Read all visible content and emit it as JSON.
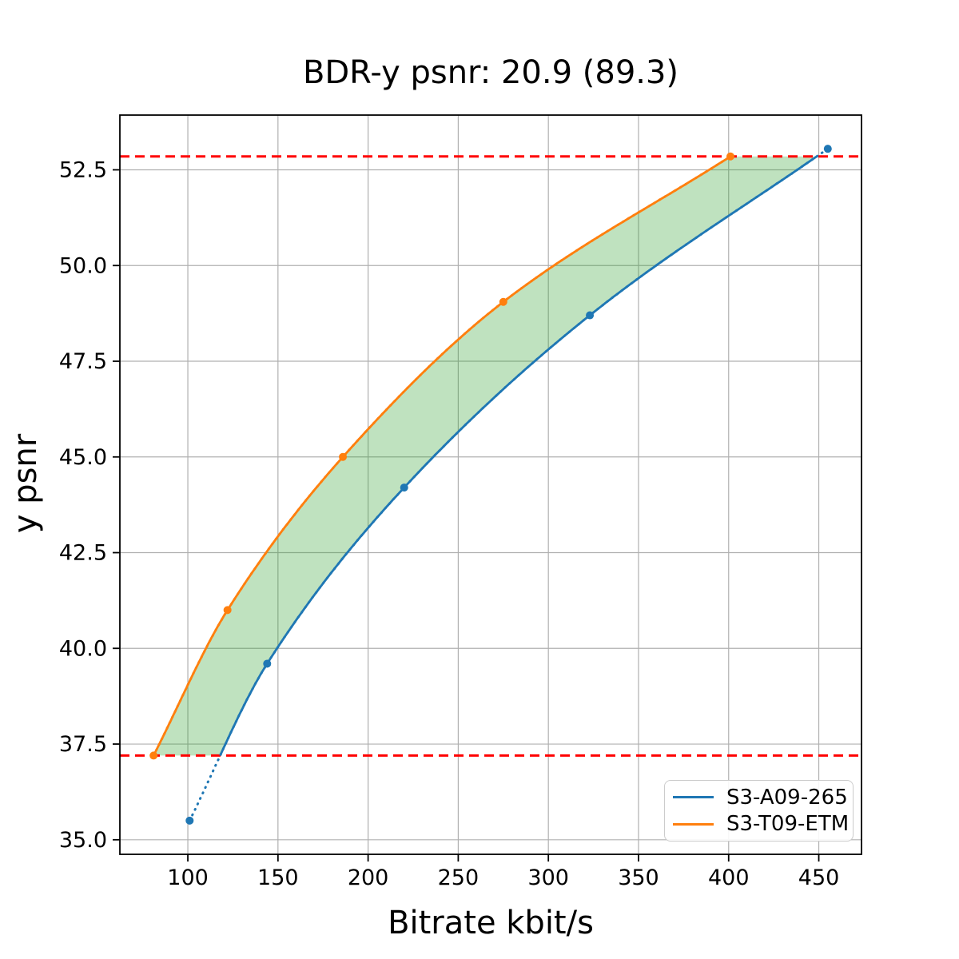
{
  "chart_data": {
    "type": "line",
    "title": "BDR-y psnr: 20.9 (89.3)",
    "xlabel": "Bitrate kbit/s",
    "ylabel": "y psnr",
    "series": [
      {
        "name": "S3-A09-265",
        "color": "#1f77b4",
        "marker": "circle",
        "x": [
          101,
          144,
          220,
          323,
          455
        ],
        "y": [
          35.5,
          39.6,
          44.2,
          48.7,
          53.05
        ]
      },
      {
        "name": "S3-T09-ETM",
        "color": "#ff7f0e",
        "marker": "circle",
        "x": [
          81,
          122,
          186,
          275,
          401
        ],
        "y": [
          37.2,
          41.0,
          45.0,
          49.05,
          52.85
        ]
      }
    ],
    "hlines": {
      "color": "#ff0000",
      "style": "dashed",
      "values": [
        37.2,
        52.85
      ]
    },
    "fill_between": {
      "color": "#2ca02c",
      "alpha": 0.3,
      "between": [
        "S3-T09-ETM",
        "S3-A09-265"
      ],
      "y_range": [
        37.2,
        52.85
      ]
    },
    "xticks": [
      100,
      150,
      200,
      250,
      300,
      350,
      400,
      450
    ],
    "yticks": [
      35.0,
      37.5,
      40.0,
      42.5,
      45.0,
      47.5,
      50.0,
      52.5
    ],
    "xlim": [
      62.3,
      473.7
    ],
    "ylim": [
      34.62,
      53.93
    ],
    "grid": true,
    "legend_position": "lower right",
    "note_line_styles": "solid inside overlap band, dotted extrapolation outside red dashed bounds"
  },
  "colors": {
    "grid": "#b0b0b0",
    "spine": "#000000",
    "background": "#ffffff",
    "legend_border": "#cccccc",
    "text": "#000000"
  }
}
